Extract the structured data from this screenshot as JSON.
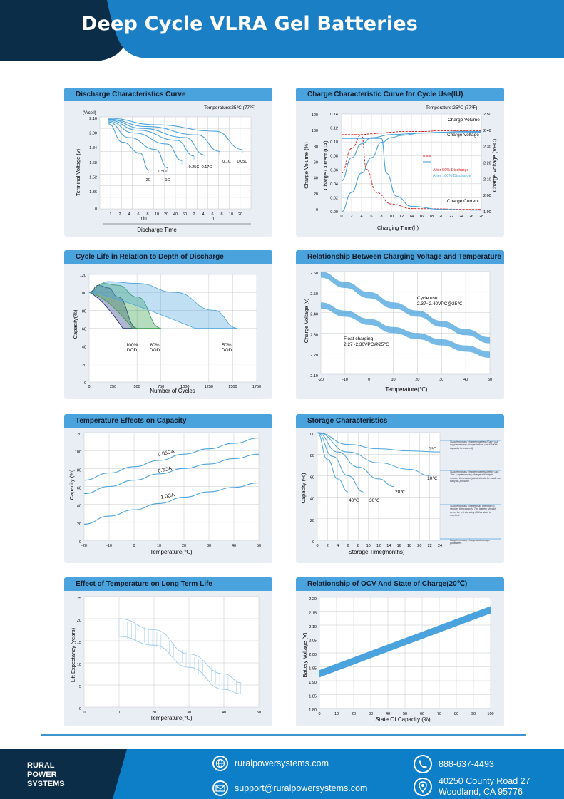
{
  "header": {
    "title": "Deep Cycle VLRA Gel Batteries"
  },
  "panels": {
    "p1": {
      "title": "Discharge Characteristics Curve",
      "ylabel": "Terminal  Voltage  (v)",
      "yunit": "(V/cell)",
      "note": "Temperature:25℃ (77℉)",
      "xlabel": "Discharge  Time",
      "yticks": [
        "2.16",
        "2.00",
        "1.84",
        "1.68",
        "1.52",
        "1.36",
        "0"
      ],
      "xticks": [
        "1",
        "2",
        "4",
        "6",
        "8",
        "10",
        "20",
        "40",
        "60",
        "2",
        "4",
        "6",
        "8",
        "10",
        "20"
      ],
      "xgroup_min": "min",
      "xgroup_h": "h",
      "curves": [
        "2C",
        "1C",
        "0.50C",
        "0.25C",
        "0.17C",
        "0.1C",
        "0.05C"
      ]
    },
    "p2": {
      "title": "Charge Characteristic Curve for Cycle Use(IU)",
      "note": "Temperature:25℃ (77℉)",
      "xlabel": "Charging Time(h)",
      "ylabel1": "Charge  Volume (%)",
      "ylabel2": "Charge  Current (CA)",
      "ylabel3": "Charge Voltage (VPC)",
      "yticks1": [
        "120",
        "100",
        "80",
        "60",
        "40",
        "20",
        "0"
      ],
      "yticks2": [
        "0.14",
        "0.12",
        "0.10",
        "0.08",
        "0.06",
        "0.04",
        "0.02",
        "0.00"
      ],
      "yticks3": [
        "2.50",
        "2.40",
        "2.30",
        "2.20",
        "2.10",
        "2.00",
        "1.90"
      ],
      "xticks": [
        "0",
        "2",
        "4",
        "6",
        "8",
        "10",
        "12",
        "14",
        "16",
        "18",
        "20",
        "22",
        "24",
        "26",
        "28"
      ],
      "label_volume": "Charge Volume",
      "label_voltage": "Charge Voltage",
      "label_current": "Charge Current",
      "legend": [
        "After 50% Discharge",
        "After 100% Discharge"
      ]
    },
    "p3": {
      "title": "Cycle Life in Relation to Depth of Discharge",
      "ylabel": "Capacity(%)",
      "xlabel": "Number of Cycles",
      "yticks": [
        "120",
        "100",
        "80",
        "60",
        "40",
        "20",
        "0"
      ],
      "xticks": [
        "250",
        "500",
        "750",
        "1000",
        "1250",
        "1500",
        "1750"
      ],
      "dod": [
        {
          "pct": "100%",
          "lbl": "DOD"
        },
        {
          "pct": "80%",
          "lbl": "DOD"
        },
        {
          "pct": "50%",
          "lbl": "DOD"
        }
      ]
    },
    "p4": {
      "title": "Relationship Between Charging Voltage and Temperature",
      "ylabel": "Charge Voltage  (v)",
      "xlabel": "Temperature(℃)",
      "yticks": [
        "2.60",
        "2.50",
        "2.40",
        "2.30",
        "2.20",
        "2.10"
      ],
      "xticks": [
        "-20",
        "-10",
        "0",
        "10",
        "20",
        "30",
        "40",
        "50"
      ],
      "cycle_label": "Cycle use",
      "cycle_value": "2.37~2.40VPC@25℃",
      "float_label": "Float charging",
      "float_value": "2.27~2.30VPC@25℃"
    },
    "p5": {
      "title": "Temperature Effects on Capacity",
      "ylabel": "Capacity (%)",
      "xlabel": "Temperature(℃)",
      "yticks": [
        "120",
        "100",
        "80",
        "60",
        "40",
        "20",
        "0"
      ],
      "xticks": [
        "-20",
        "-10",
        "0",
        "10",
        "20",
        "30",
        "40",
        "50"
      ],
      "curves": [
        "0.05CA",
        "0.2CA",
        "1.0CA"
      ]
    },
    "p6": {
      "title": "Storage Characteristics",
      "ylabel": "Capacity (%)",
      "xlabel": "Storage  Time(months)",
      "yticks": [
        "100",
        "80",
        "60",
        "40",
        "20",
        "0"
      ],
      "xticks": [
        "0",
        "2",
        "4",
        "6",
        "8",
        "10",
        "12",
        "14",
        "16",
        "18",
        "20",
        "22",
        "24"
      ],
      "curves": [
        "0℃",
        "10℃",
        "20℃",
        "30℃",
        "40℃"
      ],
      "notes": [
        "Supplementary charge required (Carry out supplementary charge before use if 100% capacity is required)",
        "Supplementary charge required before use. This supplementary charge will help to recover the capacity and should be made as early as possible.",
        "Supplementary charge may often fail to recover the capacity. The battery should never be left standing till this state is reached.",
        "Supplementary charge and storage guidelines."
      ]
    },
    "p7": {
      "title": "Effect of Temperature on Long Term Life",
      "ylabel": "Lift Expectancy  (years)",
      "xlabel": "Temperature(℃)",
      "yticks": [
        "25",
        "20",
        "15",
        "10",
        "5",
        "0"
      ],
      "xticks": [
        "0",
        "10",
        "20",
        "30",
        "40",
        "50"
      ]
    },
    "p8": {
      "title": "Relationship of OCV And State of Charge(20℃)",
      "ylabel": "Battery Voltage (V)",
      "xlabel": "State Of Capacity (%)",
      "yticks": [
        "2.20",
        "2.15",
        "2.10",
        "2.05",
        "2.00",
        "1.95",
        "1.90",
        "1.85",
        "1.80"
      ],
      "xticks": [
        "0",
        "10",
        "20",
        "30",
        "40",
        "50",
        "60",
        "70",
        "80",
        "90",
        "100"
      ]
    }
  },
  "footer": {
    "brand": [
      "RURAL",
      "POWER",
      "SYSTEMS"
    ],
    "website": "ruralpowersystems.com",
    "email": "support@ruralpowersystems.com",
    "phone": "888-637-4493",
    "address1": "40250 County Road 27",
    "address2": "Woodland, CA 95776"
  },
  "colors": {
    "header_dark": "#0c2d48",
    "header_blue": "#1b7fc6",
    "accent": "#4aa3dc",
    "curve": "#4aa3dc",
    "panel_bg": "#e9eef5",
    "footer": "#0d7fc9"
  },
  "chart_data": [
    {
      "type": "line",
      "title": "Discharge Characteristics Curve",
      "ylabel": "Terminal Voltage (v)",
      "xlabel": "Discharge Time",
      "ylim": [
        1.2,
        2.2
      ],
      "series": [
        {
          "name": "2C",
          "values": [
            2.1,
            1.9,
            1.78,
            1.6
          ]
        },
        {
          "name": "1C",
          "values": [
            2.12,
            1.95,
            1.82,
            1.62
          ]
        },
        {
          "name": "0.50C",
          "values": [
            2.13,
            2.0,
            1.88,
            1.7
          ]
        },
        {
          "name": "0.25C",
          "values": [
            2.14,
            2.03,
            1.92,
            1.75
          ]
        },
        {
          "name": "0.17C",
          "values": [
            2.15,
            2.05,
            1.95,
            1.76
          ]
        },
        {
          "name": "0.1C",
          "values": [
            2.15,
            2.07,
            1.98,
            1.8
          ]
        },
        {
          "name": "0.05C",
          "values": [
            2.16,
            2.09,
            2.02,
            1.82
          ]
        }
      ]
    },
    {
      "type": "line",
      "title": "Charge Characteristic Curve for Cycle Use(IU)",
      "xlabel": "Charging Time(h)",
      "x": [
        0,
        2,
        4,
        6,
        8,
        10,
        12,
        16,
        20,
        24,
        28
      ],
      "series": [
        {
          "name": "After 50% Discharge",
          "values": [
            50,
            82,
            100,
            101,
            102,
            103,
            104,
            104,
            105,
            105,
            105
          ]
        },
        {
          "name": "After 100% Discharge",
          "values": [
            0,
            25,
            50,
            70,
            90,
            96,
            99,
            102,
            103,
            104,
            104
          ]
        }
      ]
    },
    {
      "type": "area",
      "title": "Cycle Life in Relation to Depth of Discharge",
      "ylabel": "Capacity(%)",
      "xlabel": "Number of Cycles",
      "xlim": [
        0,
        1750
      ],
      "ylim": [
        0,
        120
      ],
      "series": [
        {
          "name": "100% DOD",
          "x": [
            0,
            100,
            200,
            300,
            500
          ],
          "values": [
            100,
            108,
            105,
            95,
            60
          ]
        },
        {
          "name": "80% DOD",
          "x": [
            0,
            150,
            300,
            500,
            750
          ],
          "values": [
            100,
            110,
            108,
            95,
            60
          ]
        },
        {
          "name": "50% DOD",
          "x": [
            0,
            200,
            500,
            900,
            1300,
            1550
          ],
          "values": [
            100,
            112,
            110,
            100,
            80,
            60
          ]
        }
      ]
    },
    {
      "type": "line",
      "title": "Relationship Between Charging Voltage and Temperature",
      "ylabel": "Charge Voltage (v)",
      "xlabel": "Temperature(℃)",
      "x": [
        -20,
        -10,
        0,
        10,
        20,
        30,
        40,
        50
      ],
      "ylim": [
        2.1,
        2.6
      ],
      "series": [
        {
          "name": "Cycle use",
          "values": [
            2.6,
            2.55,
            2.5,
            2.45,
            2.41,
            2.36,
            2.32,
            2.28
          ]
        },
        {
          "name": "Float charging",
          "values": [
            2.45,
            2.41,
            2.37,
            2.33,
            2.3,
            2.27,
            2.24,
            2.21
          ]
        }
      ]
    },
    {
      "type": "line",
      "title": "Temperature Effects on Capacity",
      "ylabel": "Capacity (%)",
      "xlabel": "Temperature(℃)",
      "x": [
        -20,
        -10,
        0,
        10,
        20,
        30,
        40,
        50
      ],
      "ylim": [
        0,
        120
      ],
      "series": [
        {
          "name": "0.05CA",
          "values": [
            67,
            75,
            82,
            89,
            96,
            102,
            108,
            114
          ]
        },
        {
          "name": "0.2CA",
          "values": [
            52,
            60,
            67,
            74,
            80,
            85,
            91,
            96
          ]
        },
        {
          "name": "1.0CA",
          "values": [
            18,
            27,
            34,
            41,
            48,
            54,
            59,
            64
          ]
        }
      ]
    },
    {
      "type": "line",
      "title": "Storage Characteristics",
      "ylabel": "Capacity (%)",
      "xlabel": "Storage Time(months)",
      "ylim": [
        0,
        100
      ],
      "series": [
        {
          "name": "0℃",
          "x": [
            0,
            6,
            12,
            18,
            24
          ],
          "values": [
            100,
            89,
            85,
            83,
            82
          ]
        },
        {
          "name": "10℃",
          "x": [
            0,
            6,
            12,
            18,
            22
          ],
          "values": [
            100,
            82,
            72,
            66,
            60
          ]
        },
        {
          "name": "20℃",
          "x": [
            0,
            4,
            8,
            12,
            15
          ],
          "values": [
            100,
            82,
            68,
            57,
            50
          ]
        },
        {
          "name": "30℃",
          "x": [
            0,
            3,
            6,
            9
          ],
          "values": [
            100,
            78,
            60,
            45
          ]
        },
        {
          "name": "40℃",
          "x": [
            0,
            2,
            4,
            6
          ],
          "values": [
            100,
            75,
            57,
            45
          ]
        }
      ]
    },
    {
      "type": "area",
      "title": "Effect of Temperature on Long Term Life",
      "ylabel": "Lift Expectancy (years)",
      "xlabel": "Temperature(℃)",
      "x": [
        10,
        20,
        30,
        40,
        45
      ],
      "series": [
        {
          "name": "upper",
          "values": [
            20,
            17.5,
            12,
            7.5,
            5.5
          ]
        },
        {
          "name": "lower",
          "values": [
            16,
            14,
            9,
            4,
            3
          ]
        }
      ]
    },
    {
      "type": "line",
      "title": "Relationship of OCV And State of Charge(20℃)",
      "ylabel": "Battery Voltage (V)",
      "xlabel": "State Of Capacity (%)",
      "x": [
        0,
        100
      ],
      "ylim": [
        1.8,
        2.2
      ],
      "series": [
        {
          "name": "OCV",
          "values": [
            1.925,
            2.155
          ]
        }
      ]
    }
  ]
}
